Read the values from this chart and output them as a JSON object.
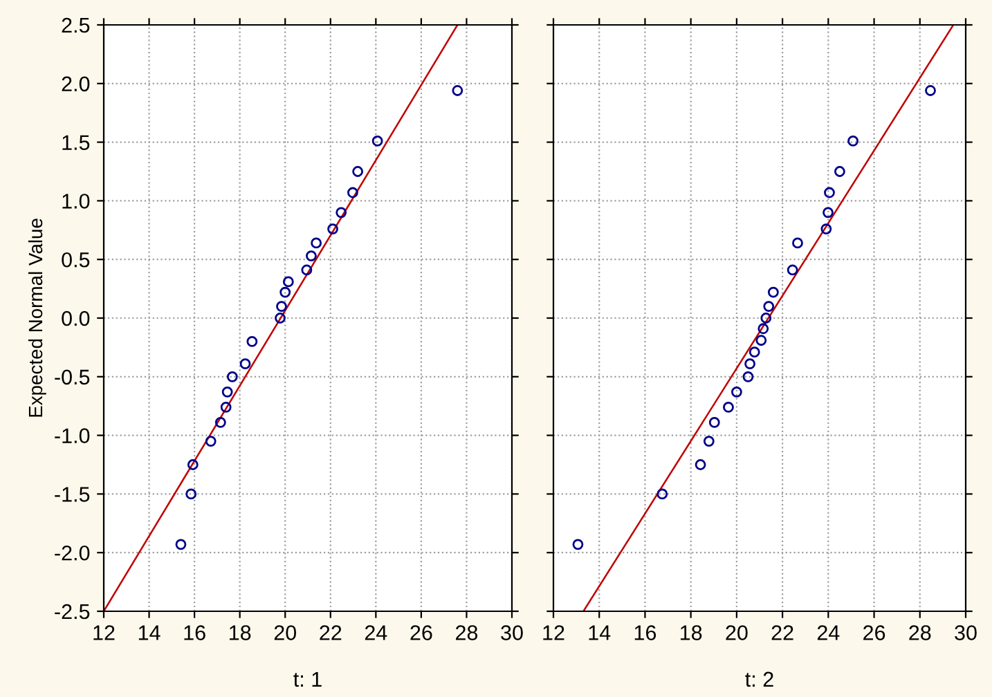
{
  "chart_data": [
    {
      "type": "scatter",
      "xlabel": "t: 1",
      "ylabel": "Expected Normal Value",
      "grid": true,
      "xlim": [
        12,
        30
      ],
      "ylim": [
        -2.5,
        2.5
      ],
      "xticks": [
        12,
        14,
        16,
        18,
        20,
        22,
        24,
        26,
        28,
        30
      ],
      "yticks": [
        -2.5,
        {
          "value": -2,
          "label": "-2.0"
        },
        -1.5,
        {
          "value": -1,
          "label": "-1.0"
        },
        -0.5,
        {
          "value": 0,
          "label": "0.0"
        },
        0.5,
        {
          "value": 1,
          "label": "1.0"
        },
        1.5,
        {
          "value": 2,
          "label": "2.0"
        },
        2.5
      ],
      "series": [
        {
          "marker": "circle",
          "color": "#00008b",
          "x": [
            27.6,
            24.07,
            23.2,
            22.98,
            22.47,
            22.1,
            21.37,
            21.15,
            20.95,
            20.14,
            20.0,
            19.84,
            19.78,
            18.54,
            18.24,
            17.67,
            17.45,
            17.39,
            17.15,
            16.72,
            15.93,
            15.85,
            15.4
          ],
          "values": [
            1.94,
            1.51,
            1.25,
            1.07,
            0.9,
            0.76,
            0.64,
            0.53,
            0.41,
            0.31,
            0.22,
            0.1,
            0.0,
            -0.2,
            -0.39,
            -0.5,
            -0.63,
            -0.76,
            -0.89,
            -1.05,
            -1.25,
            -1.5,
            -1.93
          ]
        },
        {
          "type": "line",
          "color": "#c00000",
          "x": [
            12,
            27.6
          ],
          "values": [
            -2.5,
            2.5
          ]
        }
      ]
    },
    {
      "type": "scatter",
      "xlabel": "t: 2",
      "grid": true,
      "tick_labels": "x",
      "xlim": [
        12,
        30
      ],
      "ylim": [
        -2.5,
        2.5
      ],
      "xticks": [
        12,
        14,
        16,
        18,
        20,
        22,
        24,
        26,
        28,
        30
      ],
      "yticks": [
        -2.5,
        -2,
        -1.5,
        -1,
        -0.5,
        0,
        0.5,
        1,
        1.5,
        2,
        2.5
      ],
      "series": [
        {
          "marker": "circle",
          "color": "#00008b",
          "x": [
            28.46,
            25.08,
            24.5,
            24.05,
            23.99,
            23.91,
            22.66,
            22.44,
            21.6,
            21.4,
            21.28,
            21.16,
            21.07,
            20.78,
            20.58,
            20.5,
            20.0,
            19.64,
            19.03,
            18.79,
            18.42,
            16.75,
            13.07
          ],
          "values": [
            1.94,
            1.51,
            1.25,
            1.07,
            0.9,
            0.76,
            0.64,
            0.41,
            0.22,
            0.1,
            0.0,
            -0.09,
            -0.19,
            -0.29,
            -0.39,
            -0.5,
            -0.63,
            -0.76,
            -0.89,
            -1.05,
            -1.25,
            -1.5,
            -1.93
          ]
        },
        {
          "type": "line",
          "color": "#c00000",
          "x": [
            13.31,
            29.46
          ],
          "values": [
            -2.5,
            2.5
          ]
        }
      ]
    }
  ]
}
